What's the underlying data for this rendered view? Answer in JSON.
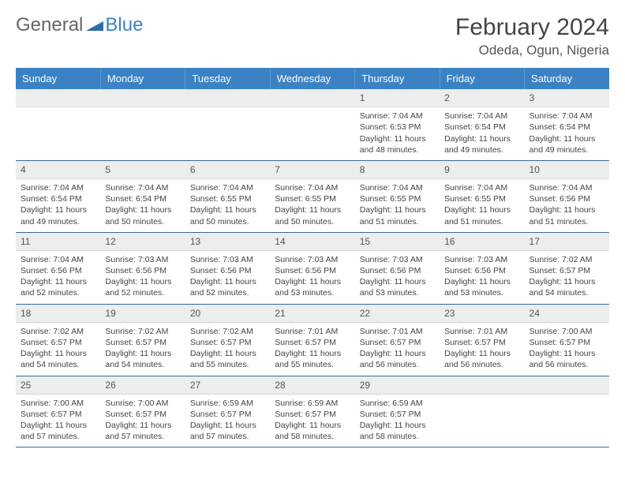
{
  "brand": {
    "general": "General",
    "blue": "Blue"
  },
  "title": "February 2024",
  "location": "Odeda, Ogun, Nigeria",
  "colors": {
    "header_bg": "#3b82c4",
    "header_text": "#ffffff",
    "daynum_bg": "#eceded",
    "row_divider": "#3b6a9a",
    "body_text": "#444444"
  },
  "days": [
    "Sunday",
    "Monday",
    "Tuesday",
    "Wednesday",
    "Thursday",
    "Friday",
    "Saturday"
  ],
  "weeks": [
    [
      null,
      null,
      null,
      null,
      {
        "n": "1",
        "sr": "Sunrise: 7:04 AM",
        "ss": "Sunset: 6:53 PM",
        "d1": "Daylight: 11 hours",
        "d2": "and 48 minutes."
      },
      {
        "n": "2",
        "sr": "Sunrise: 7:04 AM",
        "ss": "Sunset: 6:54 PM",
        "d1": "Daylight: 11 hours",
        "d2": "and 49 minutes."
      },
      {
        "n": "3",
        "sr": "Sunrise: 7:04 AM",
        "ss": "Sunset: 6:54 PM",
        "d1": "Daylight: 11 hours",
        "d2": "and 49 minutes."
      }
    ],
    [
      {
        "n": "4",
        "sr": "Sunrise: 7:04 AM",
        "ss": "Sunset: 6:54 PM",
        "d1": "Daylight: 11 hours",
        "d2": "and 49 minutes."
      },
      {
        "n": "5",
        "sr": "Sunrise: 7:04 AM",
        "ss": "Sunset: 6:54 PM",
        "d1": "Daylight: 11 hours",
        "d2": "and 50 minutes."
      },
      {
        "n": "6",
        "sr": "Sunrise: 7:04 AM",
        "ss": "Sunset: 6:55 PM",
        "d1": "Daylight: 11 hours",
        "d2": "and 50 minutes."
      },
      {
        "n": "7",
        "sr": "Sunrise: 7:04 AM",
        "ss": "Sunset: 6:55 PM",
        "d1": "Daylight: 11 hours",
        "d2": "and 50 minutes."
      },
      {
        "n": "8",
        "sr": "Sunrise: 7:04 AM",
        "ss": "Sunset: 6:55 PM",
        "d1": "Daylight: 11 hours",
        "d2": "and 51 minutes."
      },
      {
        "n": "9",
        "sr": "Sunrise: 7:04 AM",
        "ss": "Sunset: 6:55 PM",
        "d1": "Daylight: 11 hours",
        "d2": "and 51 minutes."
      },
      {
        "n": "10",
        "sr": "Sunrise: 7:04 AM",
        "ss": "Sunset: 6:56 PM",
        "d1": "Daylight: 11 hours",
        "d2": "and 51 minutes."
      }
    ],
    [
      {
        "n": "11",
        "sr": "Sunrise: 7:04 AM",
        "ss": "Sunset: 6:56 PM",
        "d1": "Daylight: 11 hours",
        "d2": "and 52 minutes."
      },
      {
        "n": "12",
        "sr": "Sunrise: 7:03 AM",
        "ss": "Sunset: 6:56 PM",
        "d1": "Daylight: 11 hours",
        "d2": "and 52 minutes."
      },
      {
        "n": "13",
        "sr": "Sunrise: 7:03 AM",
        "ss": "Sunset: 6:56 PM",
        "d1": "Daylight: 11 hours",
        "d2": "and 52 minutes."
      },
      {
        "n": "14",
        "sr": "Sunrise: 7:03 AM",
        "ss": "Sunset: 6:56 PM",
        "d1": "Daylight: 11 hours",
        "d2": "and 53 minutes."
      },
      {
        "n": "15",
        "sr": "Sunrise: 7:03 AM",
        "ss": "Sunset: 6:56 PM",
        "d1": "Daylight: 11 hours",
        "d2": "and 53 minutes."
      },
      {
        "n": "16",
        "sr": "Sunrise: 7:03 AM",
        "ss": "Sunset: 6:56 PM",
        "d1": "Daylight: 11 hours",
        "d2": "and 53 minutes."
      },
      {
        "n": "17",
        "sr": "Sunrise: 7:02 AM",
        "ss": "Sunset: 6:57 PM",
        "d1": "Daylight: 11 hours",
        "d2": "and 54 minutes."
      }
    ],
    [
      {
        "n": "18",
        "sr": "Sunrise: 7:02 AM",
        "ss": "Sunset: 6:57 PM",
        "d1": "Daylight: 11 hours",
        "d2": "and 54 minutes."
      },
      {
        "n": "19",
        "sr": "Sunrise: 7:02 AM",
        "ss": "Sunset: 6:57 PM",
        "d1": "Daylight: 11 hours",
        "d2": "and 54 minutes."
      },
      {
        "n": "20",
        "sr": "Sunrise: 7:02 AM",
        "ss": "Sunset: 6:57 PM",
        "d1": "Daylight: 11 hours",
        "d2": "and 55 minutes."
      },
      {
        "n": "21",
        "sr": "Sunrise: 7:01 AM",
        "ss": "Sunset: 6:57 PM",
        "d1": "Daylight: 11 hours",
        "d2": "and 55 minutes."
      },
      {
        "n": "22",
        "sr": "Sunrise: 7:01 AM",
        "ss": "Sunset: 6:57 PM",
        "d1": "Daylight: 11 hours",
        "d2": "and 56 minutes."
      },
      {
        "n": "23",
        "sr": "Sunrise: 7:01 AM",
        "ss": "Sunset: 6:57 PM",
        "d1": "Daylight: 11 hours",
        "d2": "and 56 minutes."
      },
      {
        "n": "24",
        "sr": "Sunrise: 7:00 AM",
        "ss": "Sunset: 6:57 PM",
        "d1": "Daylight: 11 hours",
        "d2": "and 56 minutes."
      }
    ],
    [
      {
        "n": "25",
        "sr": "Sunrise: 7:00 AM",
        "ss": "Sunset: 6:57 PM",
        "d1": "Daylight: 11 hours",
        "d2": "and 57 minutes."
      },
      {
        "n": "26",
        "sr": "Sunrise: 7:00 AM",
        "ss": "Sunset: 6:57 PM",
        "d1": "Daylight: 11 hours",
        "d2": "and 57 minutes."
      },
      {
        "n": "27",
        "sr": "Sunrise: 6:59 AM",
        "ss": "Sunset: 6:57 PM",
        "d1": "Daylight: 11 hours",
        "d2": "and 57 minutes."
      },
      {
        "n": "28",
        "sr": "Sunrise: 6:59 AM",
        "ss": "Sunset: 6:57 PM",
        "d1": "Daylight: 11 hours",
        "d2": "and 58 minutes."
      },
      {
        "n": "29",
        "sr": "Sunrise: 6:59 AM",
        "ss": "Sunset: 6:57 PM",
        "d1": "Daylight: 11 hours",
        "d2": "and 58 minutes."
      },
      null,
      null
    ]
  ]
}
